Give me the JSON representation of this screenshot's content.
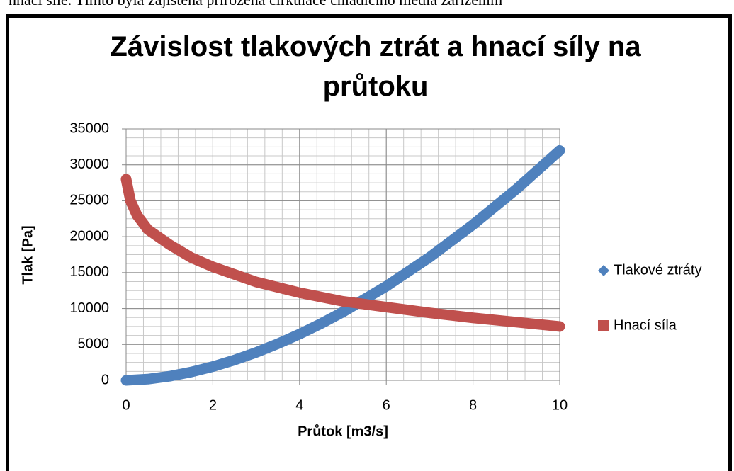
{
  "page_text": "hnací síle. Tímto byla zajištěna přirozená cirkulace chladícího média zařízením",
  "chart_data": {
    "type": "line",
    "title": "Závislost tlakových ztrát a hnací síly na průtoku",
    "xlabel": "Průtok [m3/s]",
    "ylabel": "Tlak [Pa]",
    "xlim": [
      0,
      10
    ],
    "ylim": [
      0,
      35000
    ],
    "xticks": [
      0,
      2,
      4,
      6,
      8,
      10
    ],
    "yticks": [
      0,
      5000,
      10000,
      15000,
      20000,
      25000,
      30000,
      35000
    ],
    "grid": true,
    "minor_grid": {
      "x": 0.4,
      "y": 1250
    },
    "legend": "right",
    "series": [
      {
        "name": "Tlakové ztráty",
        "color": "#4f81bd",
        "marker": "diamond",
        "x": [
          0,
          0.5,
          1,
          1.5,
          2,
          2.5,
          3,
          3.5,
          4,
          4.5,
          5,
          6,
          7,
          8,
          9,
          10
        ],
        "values": [
          0,
          169,
          569,
          1158,
          1914,
          2828,
          3891,
          5097,
          6438,
          7915,
          9514,
          13100,
          17140,
          21670,
          26610,
          32000
        ]
      },
      {
        "name": "Hnací síla",
        "color": "#c0504d",
        "marker": "square",
        "x": [
          0,
          0.1,
          0.25,
          0.5,
          1,
          1.5,
          2,
          3,
          4,
          5,
          6,
          7,
          8,
          9,
          10
        ],
        "values": [
          28000,
          25000,
          23000,
          21000,
          18900,
          17100,
          15800,
          13700,
          12200,
          11000,
          10200,
          9400,
          8700,
          8100,
          7500
        ]
      }
    ]
  }
}
